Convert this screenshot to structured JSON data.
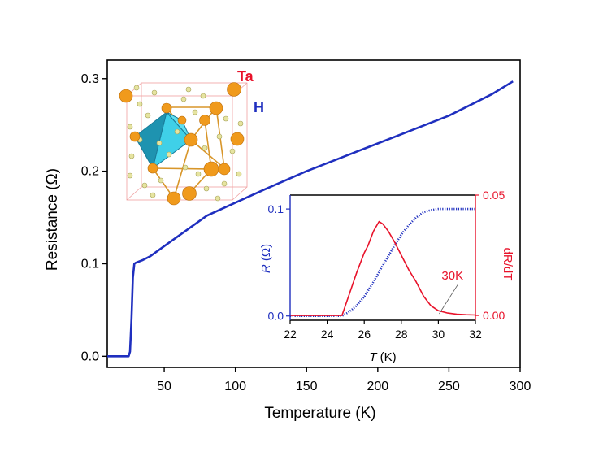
{
  "chart_data": [
    {
      "type": "line",
      "xlabel": "Temperature (K)",
      "ylabel": "Resistance (Ω)",
      "xlim": [
        10,
        300
      ],
      "ylim": [
        -0.012,
        0.32
      ],
      "xticks": [
        50,
        100,
        150,
        200,
        250,
        300
      ],
      "yticks": [
        0.0,
        0.1,
        0.2,
        0.3
      ],
      "xtick_labels": [
        "50",
        "100",
        "150",
        "200",
        "250",
        "300"
      ],
      "ytick_labels": [
        "0.0",
        "0.1",
        "0.2",
        "0.3"
      ],
      "grid": false,
      "series": [
        {
          "color": "#1f2fbf",
          "x": [
            10,
            20,
            25,
            26,
            27,
            28,
            29,
            30,
            35,
            40,
            50,
            60,
            70,
            80,
            100,
            120,
            150,
            180,
            200,
            220,
            250,
            280,
            295
          ],
          "y": [
            0.0,
            0.0,
            0.0,
            0.005,
            0.04,
            0.085,
            0.1,
            0.101,
            0.104,
            0.108,
            0.119,
            0.13,
            0.141,
            0.152,
            0.166,
            0.18,
            0.2,
            0.218,
            0.23,
            0.242,
            0.26,
            0.283,
            0.297
          ]
        }
      ],
      "annotations": [
        {
          "text": "Ta",
          "color": "#e8122a"
        },
        {
          "text": "H",
          "color": "#1f2fbf"
        }
      ]
    },
    {
      "type": "line",
      "xlabel_italic": "T",
      "xlabel_unit": " (K)",
      "ylabel_left_italic": "R",
      "ylabel_left_unit": " (Ω)",
      "ylabel_right": "dR/dT",
      "xlim": [
        22,
        32
      ],
      "ylim_left": [
        -0.004,
        0.113
      ],
      "ylim_right": [
        -0.002,
        0.05
      ],
      "xticks": [
        22,
        24,
        26,
        28,
        30,
        32
      ],
      "xtick_labels": [
        "22",
        "24",
        "26",
        "28",
        "30",
        "32"
      ],
      "yticks_left": [
        0.0,
        0.1
      ],
      "ytick_labels_left": [
        "0.0",
        "0.1"
      ],
      "yticks_right": [
        0.0,
        0.05
      ],
      "ytick_labels_right": [
        "0.00",
        "0.05"
      ],
      "left_axis_color": "#1f2fbf",
      "right_axis_color": "#e8122a",
      "series": [
        {
          "axis": "left",
          "style": "dotted",
          "color": "#1f2fbf",
          "x": [
            22,
            23,
            24,
            24.8,
            25.2,
            25.6,
            26.0,
            26.4,
            26.8,
            27.2,
            27.6,
            28.0,
            28.4,
            28.8,
            29.2,
            29.6,
            30.0,
            30.5,
            31.0,
            31.5,
            32
          ],
          "y": [
            0.0,
            0.0,
            0.0,
            0.0,
            0.004,
            0.01,
            0.018,
            0.029,
            0.041,
            0.053,
            0.065,
            0.076,
            0.085,
            0.092,
            0.097,
            0.099,
            0.1,
            0.1,
            0.1,
            0.1,
            0.1
          ]
        },
        {
          "axis": "right",
          "style": "solid",
          "color": "#e8122a",
          "x": [
            22,
            23,
            24,
            24.8,
            25.2,
            25.6,
            26.0,
            26.2,
            26.5,
            26.8,
            27.0,
            27.3,
            27.6,
            28.0,
            28.4,
            28.8,
            29.2,
            29.6,
            30.0,
            30.5,
            31.0,
            31.5,
            32
          ],
          "y": [
            0.0,
            0.0,
            0.0,
            0.0,
            0.009,
            0.018,
            0.026,
            0.029,
            0.035,
            0.039,
            0.038,
            0.035,
            0.031,
            0.025,
            0.019,
            0.014,
            0.008,
            0.004,
            0.002,
            0.001,
            0.0005,
            0.0003,
            0.0002
          ]
        }
      ],
      "annotations": [
        {
          "text": "30K",
          "color": "#e8122a",
          "x": 30.0,
          "y_right": 0.0
        }
      ]
    }
  ]
}
